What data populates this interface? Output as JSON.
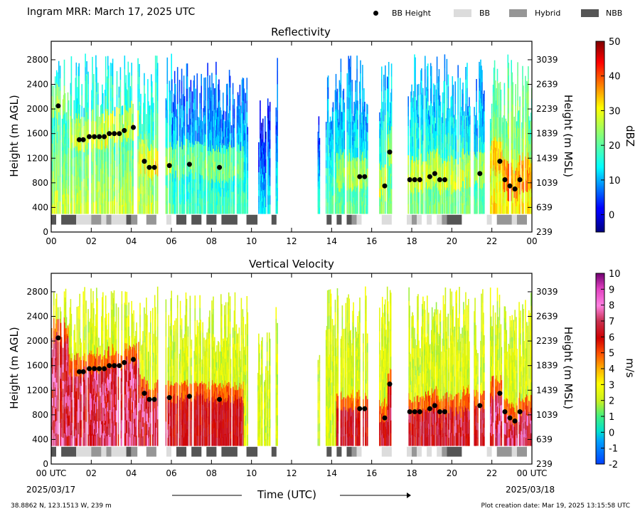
{
  "header": {
    "title": "Ingram MRR:  March 17, 2025 UTC",
    "legend": [
      {
        "label": "BB Height",
        "kind": "dot",
        "color": "#000000"
      },
      {
        "label": "BB",
        "kind": "swatch",
        "color": "#dcdcdc"
      },
      {
        "label": "Hybrid",
        "kind": "swatch",
        "color": "#969696"
      },
      {
        "label": "NBB",
        "kind": "swatch",
        "color": "#555555"
      }
    ]
  },
  "footer": {
    "location": "38.8862 N, 123.1513 W, 239 m",
    "creation": "Plot creation date: Mar 19, 2025 13:15:58 UTC",
    "start_date": "2025/03/17",
    "end_date": "2025/03/18",
    "xlabel": "Time (UTC)"
  },
  "colors": {
    "bb": "#dcdcdc",
    "hybrid": "#969696",
    "nbb": "#555555",
    "dot": "#000000"
  },
  "chart_data": [
    {
      "type": "heatmap",
      "title": "Reflectivity",
      "ylabel": "Height (m AGL)",
      "ylabel_right": "Height (m MSL)",
      "xlim": [
        0,
        24
      ],
      "ylim": [
        0,
        3100
      ],
      "x_ticks": [
        "00",
        "02",
        "04",
        "06",
        "08",
        "10",
        "12",
        "14",
        "16",
        "18",
        "20",
        "22",
        "00"
      ],
      "y_ticks": [
        "0",
        "400",
        "800",
        "1200",
        "1600",
        "2000",
        "2400",
        "2800"
      ],
      "y_ticks_right": [
        "239",
        "639",
        "1039",
        "1439",
        "1839",
        "2239",
        "2639",
        "3039"
      ],
      "colorbar": {
        "label": "dBZ",
        "range": [
          -5,
          50
        ],
        "ticks": [
          "0",
          "10",
          "20",
          "30",
          "40",
          "50"
        ],
        "colormap": "jet"
      },
      "field": "reflectivity"
    },
    {
      "type": "heatmap",
      "title": "Vertical Velocity",
      "ylabel": "Height (m AGL)",
      "ylabel_right": "Height (m MSL)",
      "xlim": [
        0,
        24
      ],
      "ylim": [
        0,
        3100
      ],
      "x_ticks": [
        "00 UTC",
        "02",
        "04",
        "06",
        "08",
        "10",
        "12",
        "14",
        "16",
        "18",
        "20",
        "22",
        "00 UTC"
      ],
      "y_ticks": [
        "0",
        "400",
        "800",
        "1200",
        "1600",
        "2000",
        "2400",
        "2800"
      ],
      "y_ticks_right": [
        "239",
        "639",
        "1039",
        "1439",
        "1839",
        "2239",
        "2639",
        "3039"
      ],
      "colorbar": {
        "label": "m/s",
        "range": [
          -2,
          10
        ],
        "ticks": [
          "-2",
          "-1",
          "0",
          "1",
          "2",
          "3",
          "4",
          "5",
          "6",
          "7",
          "8",
          "9",
          "10"
        ],
        "colormap": "velocity"
      },
      "field": "velocity"
    }
  ],
  "bb_height": [
    [
      0.35,
      2050
    ],
    [
      1.4,
      1500
    ],
    [
      1.6,
      1500
    ],
    [
      1.9,
      1550
    ],
    [
      2.15,
      1550
    ],
    [
      2.4,
      1550
    ],
    [
      2.65,
      1550
    ],
    [
      2.9,
      1600
    ],
    [
      3.15,
      1600
    ],
    [
      3.4,
      1600
    ],
    [
      3.65,
      1650
    ],
    [
      4.1,
      1700
    ],
    [
      4.65,
      1150
    ],
    [
      4.9,
      1050
    ],
    [
      5.15,
      1050
    ],
    [
      5.9,
      1080
    ],
    [
      6.9,
      1100
    ],
    [
      8.4,
      1050
    ],
    [
      15.4,
      900
    ],
    [
      15.65,
      900
    ],
    [
      16.65,
      750
    ],
    [
      16.9,
      1300
    ],
    [
      17.9,
      850
    ],
    [
      18.15,
      850
    ],
    [
      18.4,
      850
    ],
    [
      18.9,
      900
    ],
    [
      19.15,
      950
    ],
    [
      19.4,
      850
    ],
    [
      19.65,
      850
    ],
    [
      21.4,
      950
    ],
    [
      22.4,
      1150
    ],
    [
      22.65,
      850
    ],
    [
      22.9,
      750
    ],
    [
      23.15,
      700
    ],
    [
      23.4,
      850
    ]
  ],
  "classification": [
    {
      "start": 0.0,
      "end": 0.25,
      "type": "nbb"
    },
    {
      "start": 0.5,
      "end": 1.25,
      "type": "nbb"
    },
    {
      "start": 1.25,
      "end": 2.0,
      "type": "bb"
    },
    {
      "start": 2.0,
      "end": 2.5,
      "type": "hybrid"
    },
    {
      "start": 2.5,
      "end": 2.75,
      "type": "bb"
    },
    {
      "start": 2.75,
      "end": 3.0,
      "type": "hybrid"
    },
    {
      "start": 3.0,
      "end": 3.75,
      "type": "bb"
    },
    {
      "start": 3.75,
      "end": 4.0,
      "type": "nbb"
    },
    {
      "start": 4.0,
      "end": 4.3,
      "type": "hybrid"
    },
    {
      "start": 4.75,
      "end": 5.25,
      "type": "hybrid"
    },
    {
      "start": 5.75,
      "end": 6.0,
      "type": "bb"
    },
    {
      "start": 6.25,
      "end": 6.75,
      "type": "nbb"
    },
    {
      "start": 7.0,
      "end": 7.5,
      "type": "nbb"
    },
    {
      "start": 7.75,
      "end": 8.25,
      "type": "nbb"
    },
    {
      "start": 8.5,
      "end": 9.3,
      "type": "nbb"
    },
    {
      "start": 9.75,
      "end": 10.3,
      "type": "nbb"
    },
    {
      "start": 11.0,
      "end": 11.25,
      "type": "nbb"
    },
    {
      "start": 13.75,
      "end": 14.0,
      "type": "nbb"
    },
    {
      "start": 14.25,
      "end": 14.5,
      "type": "nbb"
    },
    {
      "start": 14.75,
      "end": 15.0,
      "type": "nbb"
    },
    {
      "start": 15.0,
      "end": 15.25,
      "type": "hybrid"
    },
    {
      "start": 15.25,
      "end": 15.5,
      "type": "bb"
    },
    {
      "start": 16.5,
      "end": 17.0,
      "type": "bb"
    },
    {
      "start": 17.75,
      "end": 18.0,
      "type": "bb"
    },
    {
      "start": 18.0,
      "end": 18.25,
      "type": "hybrid"
    },
    {
      "start": 18.25,
      "end": 18.5,
      "type": "bb"
    },
    {
      "start": 18.75,
      "end": 19.0,
      "type": "bb"
    },
    {
      "start": 19.25,
      "end": 19.5,
      "type": "bb"
    },
    {
      "start": 19.5,
      "end": 19.75,
      "type": "hybrid"
    },
    {
      "start": 19.75,
      "end": 20.5,
      "type": "nbb"
    },
    {
      "start": 21.75,
      "end": 22.0,
      "type": "bb"
    },
    {
      "start": 22.25,
      "end": 23.0,
      "type": "hybrid"
    },
    {
      "start": 23.0,
      "end": 23.25,
      "type": "bb"
    },
    {
      "start": 23.25,
      "end": 23.75,
      "type": "hybrid"
    }
  ],
  "echo_segments": [
    {
      "start": 0.0,
      "end": 5.3,
      "top": 2900,
      "intensity": 0.45
    },
    {
      "start": 5.7,
      "end": 6.0,
      "top": 2900,
      "intensity": 0.35
    },
    {
      "start": 6.0,
      "end": 9.8,
      "top": 2800,
      "intensity": 0.25
    },
    {
      "start": 10.3,
      "end": 10.9,
      "top": 2200,
      "intensity": 0.15
    },
    {
      "start": 11.2,
      "end": 11.3,
      "top": 2900,
      "intensity": 0.2
    },
    {
      "start": 13.3,
      "end": 13.4,
      "top": 2000,
      "intensity": 0.2
    },
    {
      "start": 13.7,
      "end": 15.8,
      "top": 2900,
      "intensity": 0.3
    },
    {
      "start": 16.3,
      "end": 17.0,
      "top": 2900,
      "intensity": 0.35
    },
    {
      "start": 17.8,
      "end": 20.9,
      "top": 2900,
      "intensity": 0.35
    },
    {
      "start": 21.1,
      "end": 21.6,
      "top": 2900,
      "intensity": 0.3
    },
    {
      "start": 21.9,
      "end": 24.0,
      "top": 2900,
      "intensity": 0.55
    }
  ]
}
